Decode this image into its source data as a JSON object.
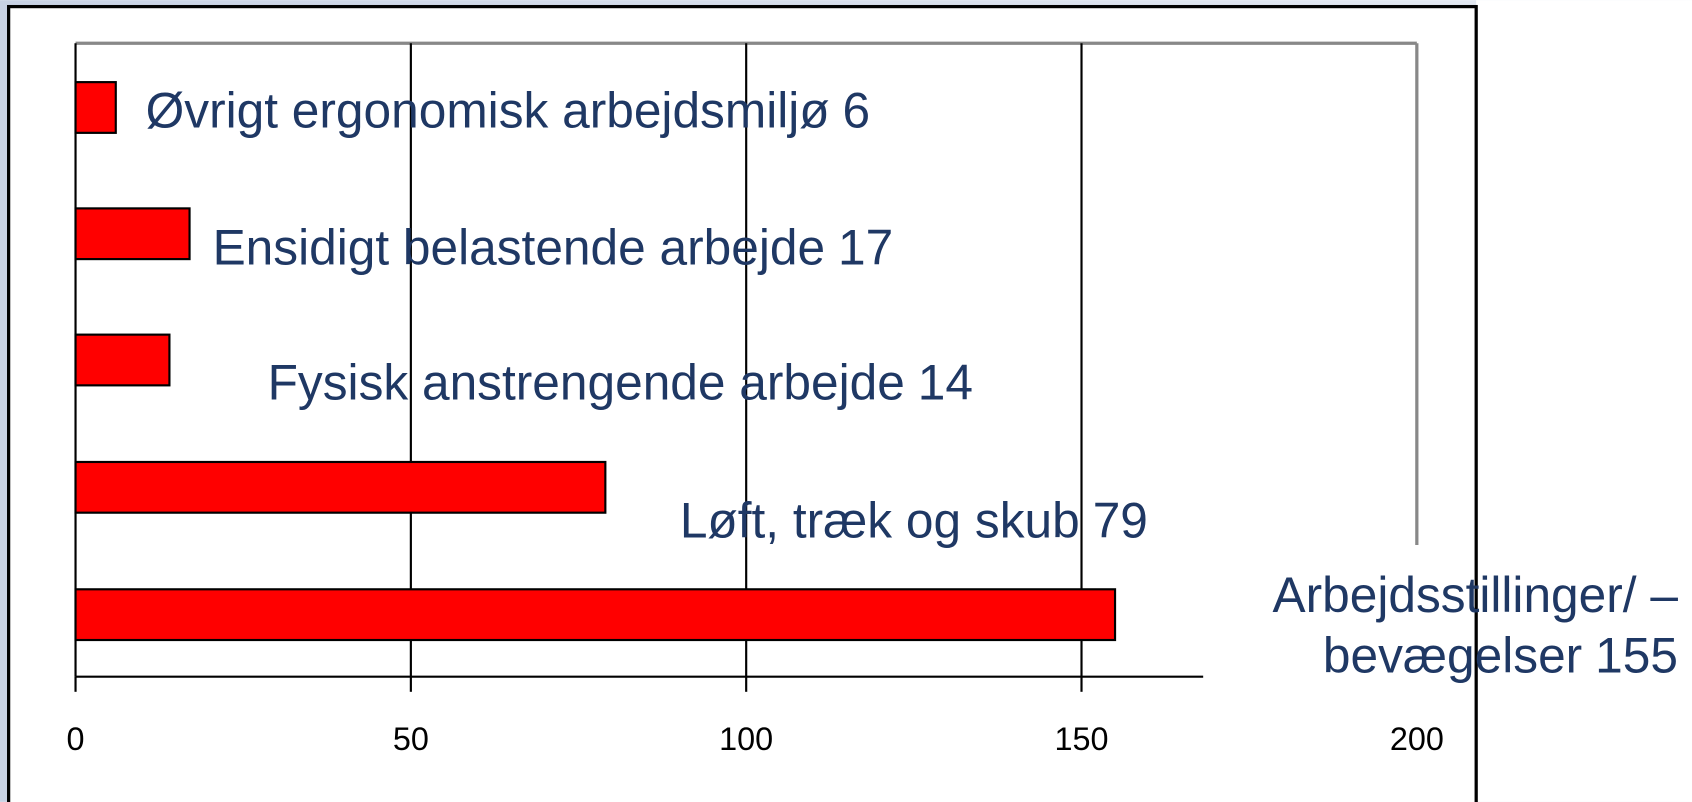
{
  "chart_data": {
    "type": "bar",
    "orientation": "horizontal",
    "categories": [
      "Øvrigt ergonomisk arbejdsmiljø",
      "Ensidigt belastende arbejde",
      "Fysisk anstrengende arbejde",
      "Løft, træk og skub",
      "Arbejdsstillinger/ –\nbevægelser"
    ],
    "values": [
      6,
      17,
      14,
      79,
      155
    ],
    "color": "#ff0000",
    "xlim": [
      0,
      200
    ],
    "xticks": [
      0,
      50,
      100,
      150,
      200
    ],
    "grid": true
  }
}
